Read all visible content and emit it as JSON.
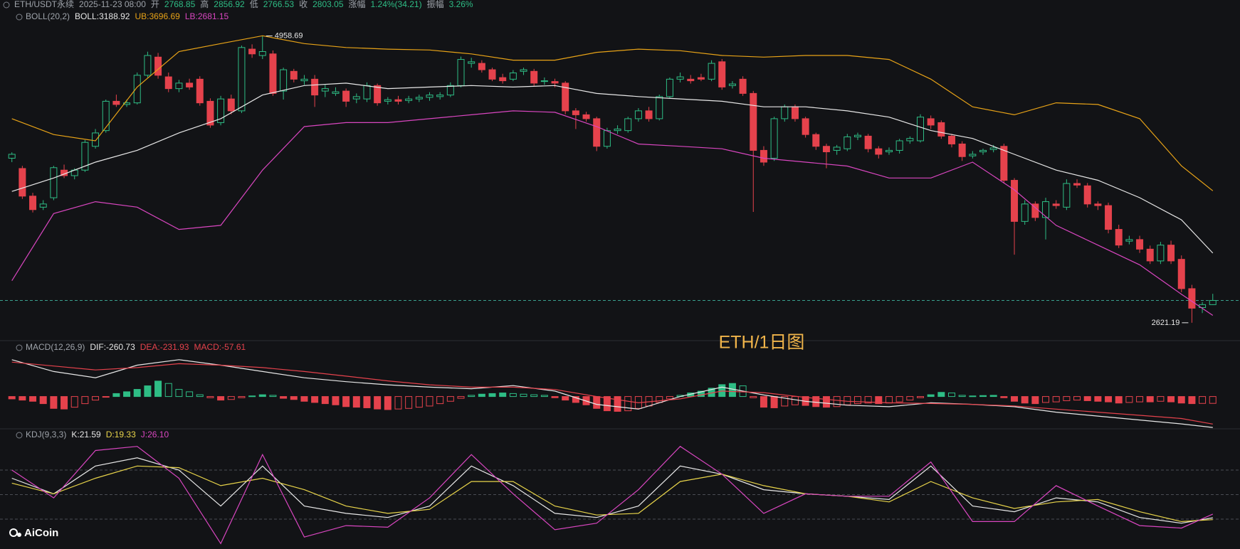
{
  "header": {
    "logo": "AiCoin",
    "watermark": "ETH/1日图"
  },
  "chart_data": [
    {
      "type": "candlestick",
      "symbol": "ETH/USDT永续",
      "time": "2025-11-23 08:00",
      "labels": {
        "open": "开",
        "high": "高",
        "low": "低",
        "close": "收",
        "change": "涨幅",
        "amplitude": "振幅"
      },
      "change": "1.24%(34.21)",
      "amplitude": "3.26%",
      "title": "BOLL(20,2)",
      "ylim": [
        2545,
        5060
      ],
      "up_color": "#2ebd85",
      "down_color": "#e5424c",
      "last_price_color": "#3aa18f",
      "candles": [
        [
          3962,
          4010,
          3930,
          3994
        ],
        [
          3878,
          3900,
          3630,
          3653
        ],
        [
          3653,
          3680,
          3520,
          3543
        ],
        [
          3563,
          3620,
          3540,
          3589
        ],
        [
          3640,
          3900,
          3620,
          3885
        ],
        [
          3865,
          3910,
          3800,
          3820
        ],
        [
          3820,
          3880,
          3790,
          3865
        ],
        [
          3865,
          4110,
          3850,
          4091
        ],
        [
          4059,
          4200,
          4040,
          4168
        ],
        [
          4187,
          4440,
          4170,
          4426
        ],
        [
          4426,
          4480,
          4380,
          4400
        ],
        [
          4400,
          4440,
          4380,
          4413
        ],
        [
          4413,
          4660,
          4400,
          4638
        ],
        [
          4638,
          4830,
          4620,
          4799
        ],
        [
          4786,
          4820,
          4610,
          4638
        ],
        [
          4625,
          4660,
          4500,
          4529
        ],
        [
          4529,
          4600,
          4500,
          4574
        ],
        [
          4574,
          4610,
          4520,
          4542
        ],
        [
          4606,
          4630,
          4390,
          4413
        ],
        [
          4426,
          4450,
          4210,
          4232
        ],
        [
          4252,
          4470,
          4230,
          4445
        ],
        [
          4445,
          4480,
          4320,
          4348
        ],
        [
          4348,
          4880,
          4330,
          4864
        ],
        [
          4851,
          4890,
          4780,
          4812
        ],
        [
          4799,
          4958.69,
          4770,
          4831
        ],
        [
          4812,
          4840,
          4470,
          4490
        ],
        [
          4509,
          4700,
          4440,
          4683
        ],
        [
          4670,
          4690,
          4580,
          4606
        ],
        [
          4593,
          4640,
          4560,
          4606
        ],
        [
          4606,
          4640,
          4380,
          4477
        ],
        [
          4509,
          4560,
          4460,
          4529
        ],
        [
          4490,
          4540,
          4470,
          4503
        ],
        [
          4509,
          4530,
          4380,
          4426
        ],
        [
          4445,
          4490,
          4410,
          4464
        ],
        [
          4445,
          4580,
          4420,
          4554
        ],
        [
          4554,
          4570,
          4390,
          4413
        ],
        [
          4426,
          4460,
          4400,
          4439
        ],
        [
          4439,
          4470,
          4400,
          4426
        ],
        [
          4432,
          4470,
          4410,
          4445
        ],
        [
          4445,
          4480,
          4420,
          4458
        ],
        [
          4458,
          4500,
          4430,
          4477
        ],
        [
          4464,
          4500,
          4440,
          4477
        ],
        [
          4477,
          4580,
          4460,
          4554
        ],
        [
          4554,
          4790,
          4540,
          4767
        ],
        [
          4735,
          4780,
          4700,
          4748
        ],
        [
          4735,
          4760,
          4660,
          4683
        ],
        [
          4683,
          4700,
          4590,
          4606
        ],
        [
          4619,
          4650,
          4570,
          4593
        ],
        [
          4606,
          4680,
          4590,
          4657
        ],
        [
          4670,
          4700,
          4640,
          4683
        ],
        [
          4670,
          4690,
          4550,
          4574
        ],
        [
          4587,
          4620,
          4560,
          4593
        ],
        [
          4587,
          4610,
          4540,
          4574
        ],
        [
          4574,
          4590,
          4320,
          4348
        ],
        [
          4348,
          4370,
          4200,
          4316
        ],
        [
          4316,
          4340,
          4260,
          4284
        ],
        [
          4284,
          4300,
          4020,
          4059
        ],
        [
          4059,
          4210,
          4040,
          4187
        ],
        [
          4187,
          4230,
          4160,
          4200
        ],
        [
          4187,
          4300,
          4170,
          4284
        ],
        [
          4284,
          4370,
          4260,
          4348
        ],
        [
          4348,
          4380,
          4260,
          4284
        ],
        [
          4284,
          4480,
          4270,
          4464
        ],
        [
          4464,
          4620,
          4450,
          4606
        ],
        [
          4606,
          4660,
          4580,
          4625
        ],
        [
          4606,
          4640,
          4570,
          4593
        ],
        [
          4619,
          4650,
          4590,
          4606
        ],
        [
          4606,
          4760,
          4590,
          4735
        ],
        [
          4748,
          4770,
          4520,
          4542
        ],
        [
          4554,
          4590,
          4530,
          4567
        ],
        [
          4606,
          4630,
          4470,
          4490
        ],
        [
          4490,
          4510,
          3524,
          4026
        ],
        [
          4026,
          4060,
          3900,
          3930
        ],
        [
          3962,
          4300,
          3940,
          4284
        ],
        [
          4284,
          4400,
          4260,
          4381
        ],
        [
          4381,
          4400,
          4260,
          4284
        ],
        [
          4284,
          4300,
          4130,
          4155
        ],
        [
          4155,
          4170,
          4030,
          4059
        ],
        [
          4059,
          4080,
          3880,
          4014
        ],
        [
          4026,
          4070,
          3990,
          4052
        ],
        [
          4039,
          4160,
          4020,
          4136
        ],
        [
          4136,
          4170,
          4110,
          4149
        ],
        [
          4142,
          4160,
          4010,
          4039
        ],
        [
          4039,
          4060,
          3960,
          3994
        ],
        [
          4014,
          4050,
          3990,
          4026
        ],
        [
          4026,
          4120,
          4000,
          4104
        ],
        [
          4104,
          4140,
          4080,
          4123
        ],
        [
          4104,
          4320,
          4090,
          4297
        ],
        [
          4284,
          4310,
          4200,
          4232
        ],
        [
          4252,
          4270,
          4120,
          4142
        ],
        [
          4142,
          4160,
          4050,
          4078
        ],
        [
          4078,
          4100,
          3940,
          3975
        ],
        [
          3981,
          4020,
          3960,
          3994
        ],
        [
          4014,
          4040,
          3990,
          4026
        ],
        [
          4033,
          4070,
          4010,
          4046
        ],
        [
          4059,
          4080,
          3760,
          3782
        ],
        [
          3782,
          3800,
          3176,
          3447
        ],
        [
          3447,
          3620,
          3420,
          3589
        ],
        [
          3589,
          3610,
          3450,
          3479
        ],
        [
          3479,
          3640,
          3300,
          3608
        ],
        [
          3589,
          3620,
          3550,
          3576
        ],
        [
          3563,
          3790,
          3540,
          3756
        ],
        [
          3756,
          3790,
          3720,
          3743
        ],
        [
          3737,
          3760,
          3560,
          3589
        ],
        [
          3589,
          3610,
          3540,
          3576
        ],
        [
          3576,
          3600,
          3350,
          3382
        ],
        [
          3382,
          3420,
          3230,
          3254
        ],
        [
          3286,
          3330,
          3260,
          3299
        ],
        [
          3299,
          3330,
          3190,
          3221
        ],
        [
          3221,
          3250,
          3100,
          3125
        ],
        [
          3125,
          3280,
          3100,
          3254
        ],
        [
          3254,
          3290,
          3100,
          3125
        ],
        [
          3138,
          3170,
          2870,
          2899
        ],
        [
          2899,
          2930,
          2621.19,
          2740
        ],
        [
          2745,
          2790,
          2700,
          2769
        ],
        [
          2768.85,
          2856.92,
          2766.53,
          2803.05
        ]
      ],
      "x": [
        0,
        4,
        8,
        12,
        16,
        20,
        24,
        28,
        32,
        36,
        40,
        44,
        48,
        52,
        56,
        60,
        64,
        68,
        72,
        76,
        80,
        84,
        88,
        92,
        96,
        100,
        104,
        108,
        112,
        115
      ],
      "series": [
        {
          "name": "BOLL",
          "legend": "BOLL:3188.92",
          "color": "#e8e8e8",
          "values": [
            3691,
            3801,
            3930,
            4026,
            4168,
            4284,
            4477,
            4554,
            4574,
            4529,
            4542,
            4554,
            4542,
            4554,
            4490,
            4464,
            4445,
            4426,
            4381,
            4381,
            4348,
            4297,
            4187,
            4123,
            3994,
            3865,
            3782,
            3640,
            3460,
            3188.92
          ]
        },
        {
          "name": "UB",
          "legend": "UB:3696.69",
          "color": "#e8a317",
          "values": [
            4284,
            4155,
            4104,
            4542,
            4831,
            4896,
            4960,
            4896,
            4864,
            4851,
            4844,
            4812,
            4761,
            4761,
            4825,
            4851,
            4838,
            4799,
            4786,
            4799,
            4799,
            4767,
            4606,
            4381,
            4316,
            4413,
            4400,
            4284,
            3900,
            3696.69
          ]
        },
        {
          "name": "LB",
          "legend": "LB:2681.15",
          "color": "#d946c0",
          "values": [
            2964,
            3511,
            3608,
            3563,
            3382,
            3415,
            3865,
            4220,
            4252,
            4252,
            4284,
            4316,
            4348,
            4336,
            4220,
            4078,
            4059,
            4039,
            3962,
            3930,
            3898,
            3801,
            3801,
            3930,
            3704,
            3415,
            3254,
            3093,
            2854,
            2681.15
          ]
        }
      ]
    },
    {
      "type": "macd",
      "title": "MACD(12,26,9)",
      "ylim": [
        -320,
        345
      ],
      "histogram": {
        "name": "MACD",
        "legend": "MACD:-57.61",
        "up_color": "#2ebd85",
        "down_color": "#e5424c",
        "values": [
          -20,
          -30,
          -40,
          -60,
          -100,
          -105,
          -90,
          -60,
          -30,
          -5,
          25,
          40,
          60,
          90,
          130,
          110,
          60,
          40,
          15,
          -10,
          -30,
          -25,
          -10,
          5,
          15,
          10,
          -15,
          -25,
          -40,
          -50,
          -60,
          -70,
          -85,
          -90,
          -95,
          -105,
          -110,
          -105,
          -100,
          -90,
          -80,
          -60,
          -40,
          -15,
          10,
          20,
          25,
          30,
          25,
          20,
          15,
          10,
          -10,
          -30,
          -50,
          -70,
          -100,
          -120,
          -125,
          -120,
          -100,
          -80,
          -50,
          -20,
          10,
          30,
          45,
          70,
          100,
          110,
          90,
          -10,
          -90,
          -95,
          -80,
          -70,
          -75,
          -85,
          -90,
          -85,
          -70,
          -60,
          -55,
          -60,
          -55,
          -45,
          -30,
          -10,
          15,
          35,
          30,
          10,
          5,
          8,
          10,
          -10,
          -40,
          -55,
          -60,
          -50,
          -45,
          -35,
          -30,
          -35,
          -40,
          -45,
          -55,
          -50,
          -45,
          -45,
          -40,
          -45,
          -55,
          -60,
          -58,
          -57.61
        ]
      },
      "x": [
        0,
        4,
        8,
        12,
        16,
        20,
        24,
        28,
        32,
        36,
        40,
        44,
        48,
        52,
        56,
        60,
        64,
        68,
        72,
        76,
        80,
        84,
        88,
        92,
        96,
        100,
        104,
        108,
        112,
        115
      ],
      "series": [
        {
          "name": "DIF",
          "legend": "DIF:-260.73",
          "color": "#e8e8e8",
          "values": [
            310,
            211,
            158,
            264,
            310,
            264,
            211,
            158,
            125,
            99,
            79,
            66,
            92,
            46,
            -66,
            -106,
            0,
            79,
            13,
            -40,
            -73,
            -86,
            -53,
            -66,
            -86,
            -132,
            -165,
            -198,
            -231,
            -260.73
          ]
        },
        {
          "name": "DEA",
          "legend": "DEA:-231.93",
          "color": "#e5424c",
          "values": [
            290,
            257,
            224,
            244,
            277,
            264,
            244,
            211,
            172,
            132,
            99,
            79,
            79,
            59,
            0,
            -53,
            -20,
            46,
            33,
            -7,
            -40,
            -53,
            -59,
            -66,
            -79,
            -106,
            -132,
            -158,
            -185,
            -231.93
          ]
        }
      ]
    },
    {
      "type": "line",
      "title": "KDJ(9,3,3)",
      "ylim": [
        -14,
        114
      ],
      "hlines": [
        20,
        50,
        80
      ],
      "x": [
        0,
        4,
        8,
        12,
        16,
        20,
        24,
        28,
        32,
        36,
        40,
        44,
        48,
        52,
        56,
        60,
        64,
        68,
        72,
        76,
        80,
        84,
        88,
        92,
        96,
        100,
        104,
        108,
        112,
        115
      ],
      "series": [
        {
          "name": "K",
          "legend": "K:21.59",
          "color": "#e8e8e8",
          "values": [
            70,
            51,
            85,
            95,
            80,
            36,
            85,
            36,
            27,
            22,
            36,
            85,
            61,
            27,
            22,
            36,
            85,
            75,
            56,
            51,
            48,
            44,
            85,
            36,
            29,
            46,
            41,
            22,
            15,
            21.59
          ]
        },
        {
          "name": "D",
          "legend": "D:19.33",
          "color": "#e8d44a",
          "values": [
            64,
            51,
            70,
            85,
            83,
            61,
            70,
            56,
            36,
            27,
            32,
            66,
            66,
            36,
            25,
            27,
            66,
            75,
            61,
            51,
            48,
            41,
            66,
            46,
            33,
            41,
            44,
            29,
            17,
            19.33
          ]
        },
        {
          "name": "J",
          "legend": "J:26.10",
          "color": "#d946c0",
          "values": [
            80,
            46,
            104,
            109,
            70,
            -10,
            99,
            -2,
            12,
            10,
            46,
            99,
            51,
            7,
            15,
            56,
            109,
            75,
            27,
            51,
            48,
            48,
            90,
            17,
            17,
            61,
            36,
            12,
            9,
            26.1
          ]
        }
      ]
    }
  ]
}
